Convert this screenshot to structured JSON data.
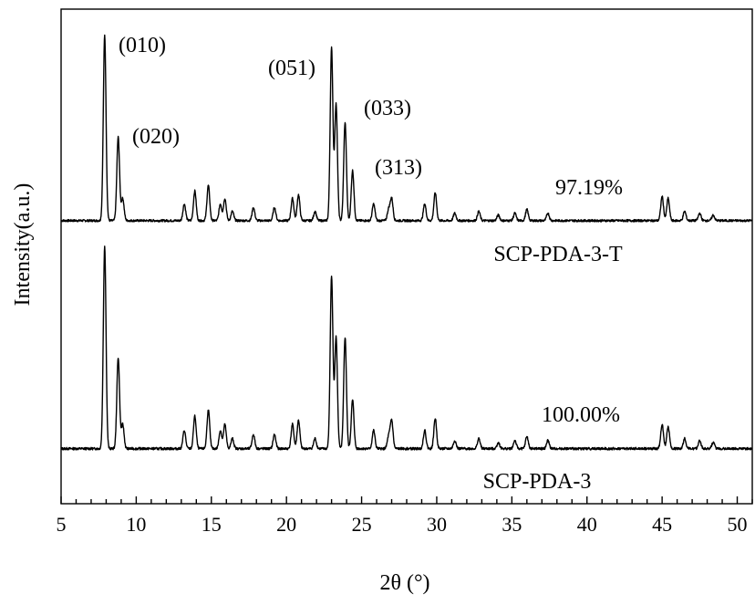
{
  "chart_data": {
    "type": "line",
    "title": "",
    "xlabel": "2θ (°)",
    "ylabel": "Intensity(a.u.)",
    "xlim": [
      5,
      51
    ],
    "x_ticks": [
      5,
      10,
      15,
      20,
      25,
      30,
      35,
      40,
      45,
      50
    ],
    "y_ticks": [],
    "grid": false,
    "legend": "none",
    "peaks_2theta": [
      7.9,
      8.8,
      9.1,
      13.2,
      13.9,
      14.8,
      15.6,
      15.9,
      16.4,
      17.8,
      19.2,
      20.4,
      20.8,
      21.9,
      23.0,
      23.3,
      23.9,
      24.4,
      25.8,
      26.8,
      27.0,
      29.2,
      29.9,
      31.2,
      32.8,
      34.1,
      35.2,
      36.0,
      37.4,
      45.0,
      45.4,
      46.5,
      47.5,
      48.4
    ],
    "series": [
      {
        "name": "SCP-PDA-3-T",
        "relative_crystallinity": "97.19%",
        "peak_heights": [
          1.0,
          0.45,
          0.12,
          0.09,
          0.16,
          0.19,
          0.09,
          0.12,
          0.05,
          0.07,
          0.07,
          0.12,
          0.14,
          0.05,
          0.93,
          0.63,
          0.53,
          0.27,
          0.09,
          0.06,
          0.12,
          0.09,
          0.15,
          0.04,
          0.05,
          0.03,
          0.04,
          0.06,
          0.04,
          0.13,
          0.12,
          0.05,
          0.04,
          0.03
        ],
        "reflections": [
          {
            "label": "(010)",
            "two_theta": 7.9
          },
          {
            "label": "(020)",
            "two_theta": 8.8
          },
          {
            "label": "(051)",
            "two_theta": 23.0
          },
          {
            "label": "(033)",
            "two_theta": 23.9
          },
          {
            "label": "(313)",
            "two_theta": 27.0
          }
        ]
      },
      {
        "name": "SCP-PDA-3",
        "relative_crystallinity": "100.00%",
        "peak_heights": [
          1.0,
          0.45,
          0.12,
          0.09,
          0.16,
          0.19,
          0.09,
          0.12,
          0.05,
          0.07,
          0.07,
          0.12,
          0.14,
          0.05,
          0.85,
          0.55,
          0.55,
          0.24,
          0.09,
          0.06,
          0.14,
          0.09,
          0.15,
          0.04,
          0.05,
          0.03,
          0.04,
          0.06,
          0.04,
          0.12,
          0.11,
          0.05,
          0.04,
          0.03
        ]
      }
    ]
  }
}
